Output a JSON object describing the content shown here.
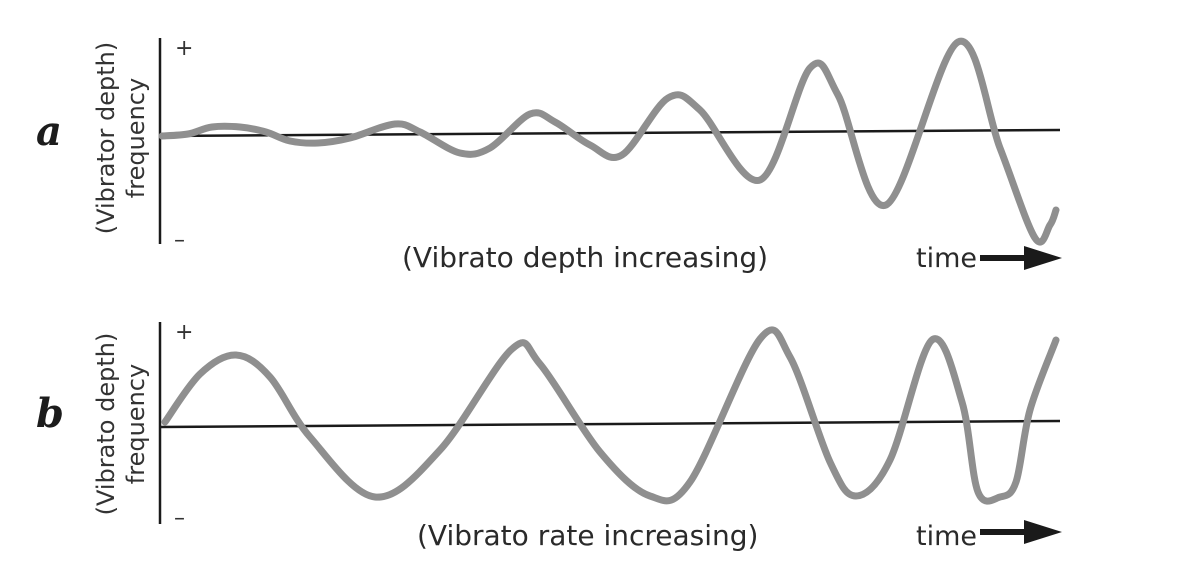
{
  "panels": [
    {
      "letter": "a",
      "ylabel_line1": "(Vibrator depth)",
      "ylabel_line2": "frequency",
      "plus": "+",
      "minus": "–",
      "caption": "(Vibrato depth increasing)",
      "time_label": "time"
    },
    {
      "letter": "b",
      "ylabel_line1": "(Vibrato depth)",
      "ylabel_line2": "frequency",
      "plus": "+",
      "minus": "–",
      "caption": "(Vibrato rate increasing)",
      "time_label": "time"
    }
  ],
  "colors": {
    "wave": "#8f8f8f",
    "axis": "#1a1a1a",
    "text": "#2a2a2a"
  }
}
